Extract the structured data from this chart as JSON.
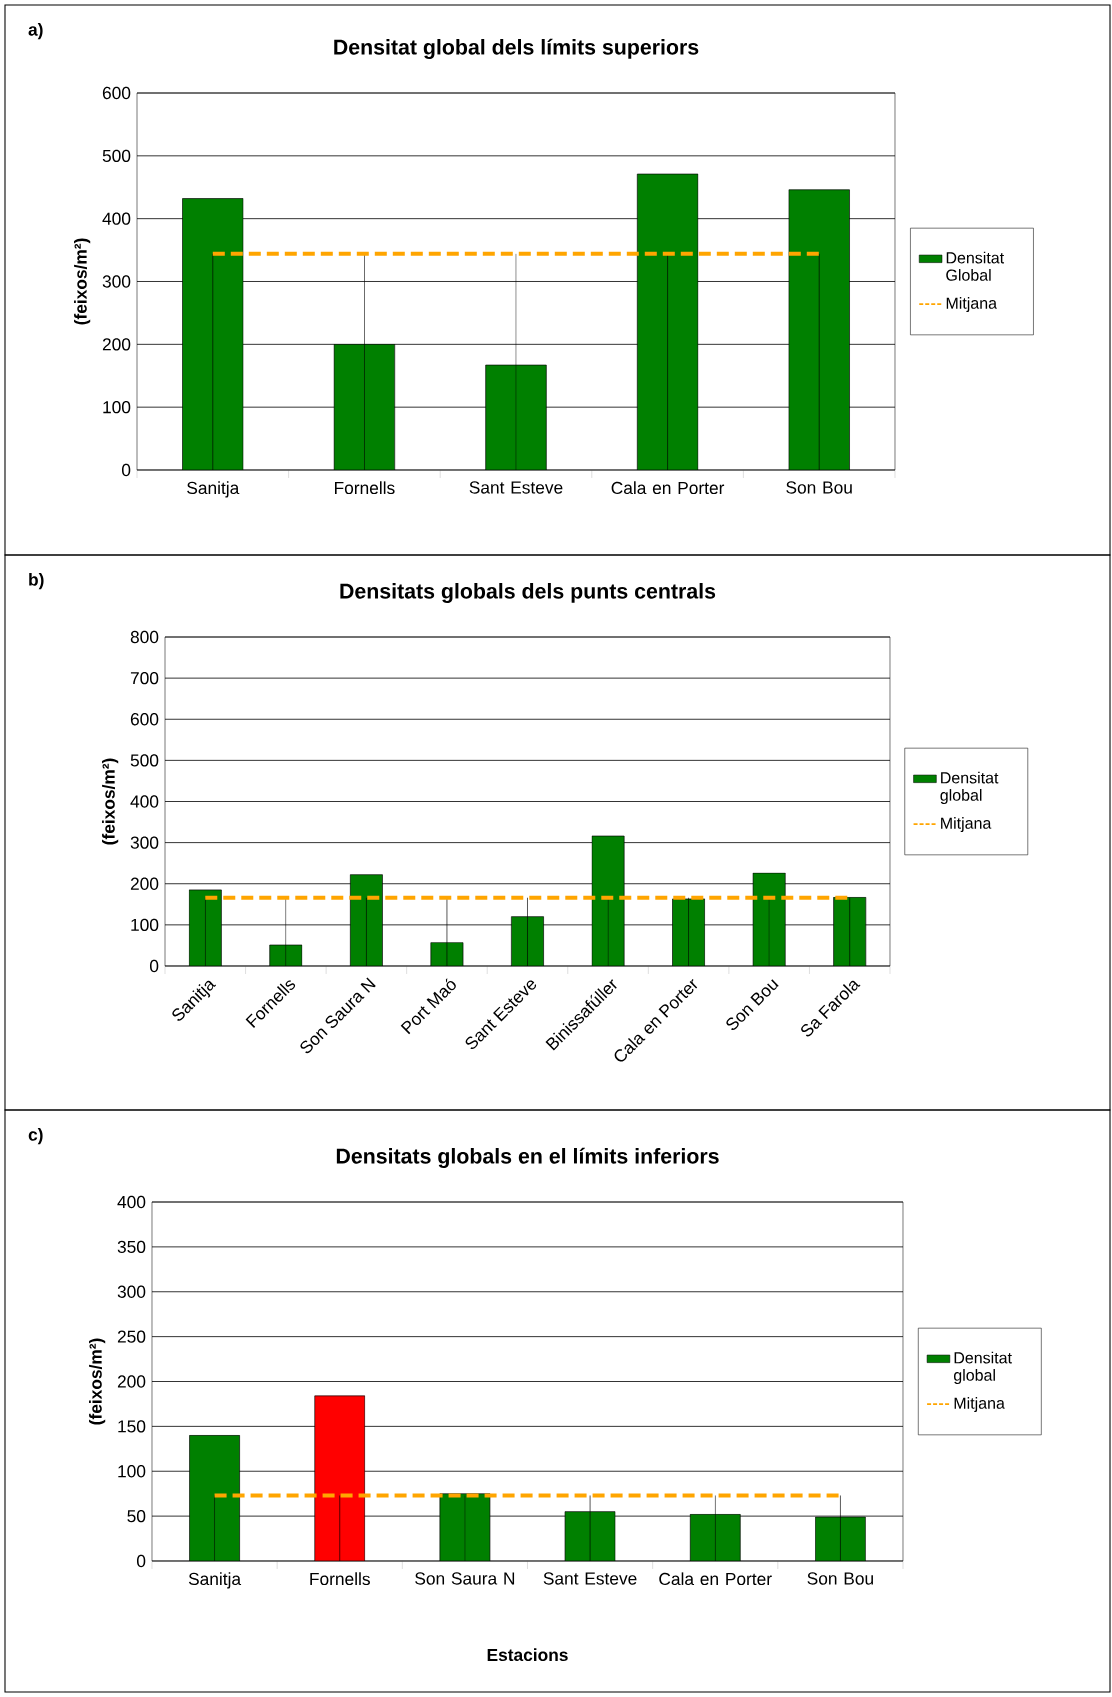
{
  "chart_data": [
    {
      "type": "bar",
      "title": "Densitat global dels límits superiors",
      "ylabel": "(feixos/m²)",
      "annotations": [
        "a)"
      ],
      "categories": [
        "Sanitja",
        "Fornells",
        "Sant Esteve",
        "Cala en Porter",
        "Son Bou"
      ],
      "series": [
        {
          "name": "Densitat Global",
          "color": "#008000",
          "values": [
            432,
            200,
            167,
            471,
            446
          ]
        },
        {
          "name": "Mitjana",
          "type": "line",
          "color": "#ffa500",
          "line_style": "dashed",
          "values": [
            344,
            344,
            344,
            344,
            344
          ],
          "errors": [
            [
              0,
              344
            ],
            [
              0,
              344
            ],
            [
              0,
              344
            ],
            [
              0,
              344
            ],
            [
              0,
              344
            ]
          ]
        }
      ],
      "ylim": [
        0,
        600
      ],
      "yticks": [
        0,
        100,
        200,
        300,
        400,
        500,
        600
      ],
      "grid": "y",
      "legend": "right"
    },
    {
      "type": "bar",
      "title": "Densitats globals dels punts centrals",
      "ylabel": "(feixos/m²)",
      "annotations": [
        "b)"
      ],
      "categories": [
        "Sanitja",
        "Fornells",
        "Son Saura N",
        "Port Maó",
        "Sant Esteve",
        "Binissafúller",
        "Cala en Porter",
        "Son Bou",
        "Sa Farola"
      ],
      "series": [
        {
          "name": "Densitat global",
          "color": "#008000",
          "values": [
            185,
            51,
            222,
            57,
            120,
            316,
            163,
            226,
            167
          ]
        },
        {
          "name": "Mitjana",
          "type": "line",
          "color": "#ffa500",
          "line_style": "dashed",
          "values": [
            166,
            166,
            166,
            166,
            166,
            166,
            166,
            166,
            166
          ],
          "errors": [
            [
              0,
              166
            ],
            [
              0,
              166
            ],
            [
              0,
              166
            ],
            [
              0,
              166
            ],
            [
              0,
              166
            ],
            [
              0,
              166
            ],
            [
              0,
              166
            ],
            [
              0,
              166
            ],
            [
              0,
              166
            ]
          ]
        }
      ],
      "ylim": [
        0,
        800
      ],
      "yticks": [
        0,
        100,
        200,
        300,
        400,
        500,
        600,
        700,
        800
      ],
      "grid": "y",
      "legend": "right"
    },
    {
      "type": "bar",
      "title": "Densitats globals en el límits inferiors",
      "xlabel": "Estacions",
      "ylabel": "(feixos/m²)",
      "annotations": [
        "c)"
      ],
      "categories": [
        "Sanitja",
        "Fornells",
        "Son Saura N",
        "Sant Esteve",
        "Cala en Porter",
        "Son Bou"
      ],
      "series": [
        {
          "name": "Densitat global",
          "color": "#008000",
          "colors": [
            "#008000",
            "#ff0000",
            "#008000",
            "#008000",
            "#008000",
            "#008000"
          ],
          "values": [
            140,
            184,
            75,
            55,
            52,
            49
          ]
        },
        {
          "name": "Mitjana",
          "type": "line",
          "color": "#ffa500",
          "line_style": "dashed",
          "values": [
            73,
            73,
            73,
            73,
            73,
            73
          ],
          "errors": [
            [
              0,
              73
            ],
            [
              0,
              73
            ],
            [
              0,
              73
            ],
            [
              0,
              73
            ],
            [
              0,
              73
            ],
            [
              0,
              73
            ]
          ]
        }
      ],
      "ylim": [
        0,
        400
      ],
      "yticks": [
        0,
        50,
        100,
        150,
        200,
        250,
        300,
        350,
        400
      ],
      "grid": "y",
      "legend": "right"
    }
  ]
}
